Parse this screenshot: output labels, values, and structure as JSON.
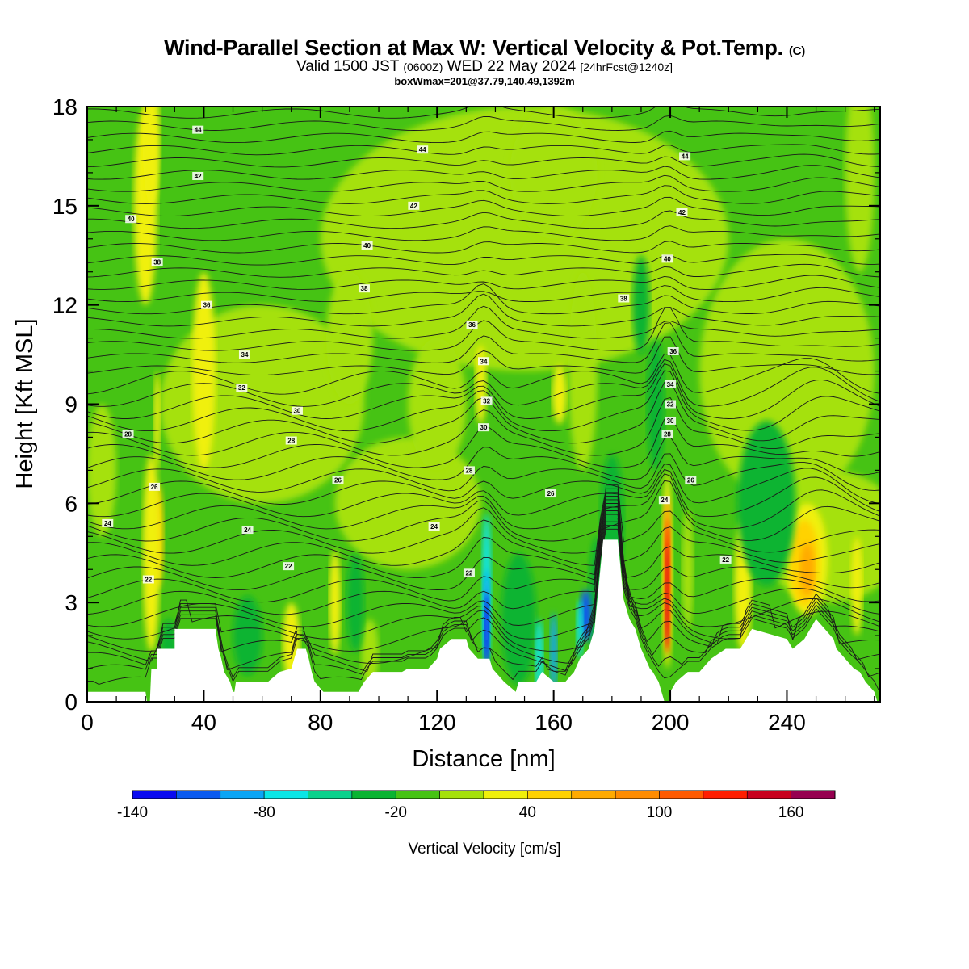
{
  "header": {
    "title_main": "Wind-Parallel Section at Max W: Vertical Velocity & Pot.Temp.",
    "title_mark": "(C)",
    "valid_prefix": "Valid 1500 JST",
    "valid_z": "(0600Z)",
    "valid_date": "WED 22 May 2024",
    "valid_fcst": "[24hrFcst@1240z]",
    "boxwmax": "boxWmax=201@37.79,140.49,1392m"
  },
  "colorbar": {
    "title": "Vertical Velocity [cm/s]",
    "tick_labels": [
      "-140",
      "-80",
      "-20",
      "40",
      "100",
      "160"
    ],
    "tick_values": [
      -140,
      -80,
      -20,
      40,
      100,
      160
    ],
    "boundaries": [
      -140,
      -120,
      -100,
      -80,
      -60,
      -40,
      -20,
      0,
      20,
      40,
      60,
      80,
      100,
      120,
      140,
      160,
      180
    ],
    "colors": [
      "#0a0af0",
      "#0a5af0",
      "#0aa5f5",
      "#0ae6e6",
      "#0ad28c",
      "#0ab432",
      "#46c314",
      "#a5e10a",
      "#f0f00a",
      "#ffd200",
      "#ffaa00",
      "#ff8c00",
      "#ff5a00",
      "#ff1e00",
      "#c8001e",
      "#960050",
      "#64008c"
    ]
  },
  "chart_data": {
    "type": "heatmap",
    "title": "Wind-Parallel Section at Max W: Vertical Velocity & Pot.Temp.",
    "xlabel": "Distance [nm]",
    "ylabel": "Height [Kft MSL]",
    "xlim": [
      0,
      272
    ],
    "ylim": [
      0,
      18
    ],
    "x_ticks": [
      0,
      40,
      80,
      120,
      160,
      200,
      240
    ],
    "y_ticks": [
      0,
      3,
      6,
      9,
      12,
      15,
      18
    ],
    "field": "Vertical Velocity [cm/s]",
    "contour_field": "Potential Temperature (C)",
    "contour_labels": [
      {
        "x": 38,
        "y": 17.3,
        "v": "44"
      },
      {
        "x": 115,
        "y": 16.7,
        "v": "44"
      },
      {
        "x": 205,
        "y": 16.5,
        "v": "44"
      },
      {
        "x": 38,
        "y": 15.9,
        "v": "42"
      },
      {
        "x": 112,
        "y": 15.0,
        "v": "42"
      },
      {
        "x": 204,
        "y": 14.8,
        "v": "42"
      },
      {
        "x": 15,
        "y": 14.6,
        "v": "40"
      },
      {
        "x": 96,
        "y": 13.8,
        "v": "40"
      },
      {
        "x": 199,
        "y": 13.4,
        "v": "40"
      },
      {
        "x": 24,
        "y": 13.3,
        "v": "38"
      },
      {
        "x": 95,
        "y": 12.5,
        "v": "38"
      },
      {
        "x": 184,
        "y": 12.2,
        "v": "38"
      },
      {
        "x": 41,
        "y": 12.0,
        "v": "36"
      },
      {
        "x": 132,
        "y": 11.4,
        "v": "36"
      },
      {
        "x": 201,
        "y": 10.6,
        "v": "36"
      },
      {
        "x": 54,
        "y": 10.5,
        "v": "34"
      },
      {
        "x": 136,
        "y": 10.3,
        "v": "34"
      },
      {
        "x": 200,
        "y": 9.6,
        "v": "34"
      },
      {
        "x": 53,
        "y": 9.5,
        "v": "32"
      },
      {
        "x": 137,
        "y": 9.1,
        "v": "32"
      },
      {
        "x": 200,
        "y": 9.0,
        "v": "32"
      },
      {
        "x": 72,
        "y": 8.8,
        "v": "30"
      },
      {
        "x": 136,
        "y": 8.3,
        "v": "30"
      },
      {
        "x": 200,
        "y": 8.5,
        "v": "30"
      },
      {
        "x": 14,
        "y": 8.1,
        "v": "28"
      },
      {
        "x": 70,
        "y": 7.9,
        "v": "28"
      },
      {
        "x": 131,
        "y": 7.0,
        "v": "28"
      },
      {
        "x": 199,
        "y": 8.1,
        "v": "28"
      },
      {
        "x": 23,
        "y": 6.5,
        "v": "26"
      },
      {
        "x": 86,
        "y": 6.7,
        "v": "26"
      },
      {
        "x": 159,
        "y": 6.3,
        "v": "26"
      },
      {
        "x": 207,
        "y": 6.7,
        "v": "26"
      },
      {
        "x": 7,
        "y": 5.4,
        "v": "24"
      },
      {
        "x": 55,
        "y": 5.2,
        "v": "24"
      },
      {
        "x": 119,
        "y": 5.3,
        "v": "24"
      },
      {
        "x": 198,
        "y": 6.1,
        "v": "24"
      },
      {
        "x": 21,
        "y": 3.7,
        "v": "22"
      },
      {
        "x": 69,
        "y": 4.1,
        "v": "22"
      },
      {
        "x": 131,
        "y": 3.9,
        "v": "22"
      },
      {
        "x": 219,
        "y": 4.3,
        "v": "22"
      }
    ],
    "notable_features": [
      {
        "x": 199,
        "y": 4.5,
        "value_cm_s": 140
      },
      {
        "x": 137,
        "y": 2.3,
        "value_cm_s": -140
      },
      {
        "x": 245,
        "y": 4.0,
        "value_cm_s": 80
      },
      {
        "x": 22,
        "y": 4.8,
        "value_cm_s": 60
      }
    ]
  }
}
